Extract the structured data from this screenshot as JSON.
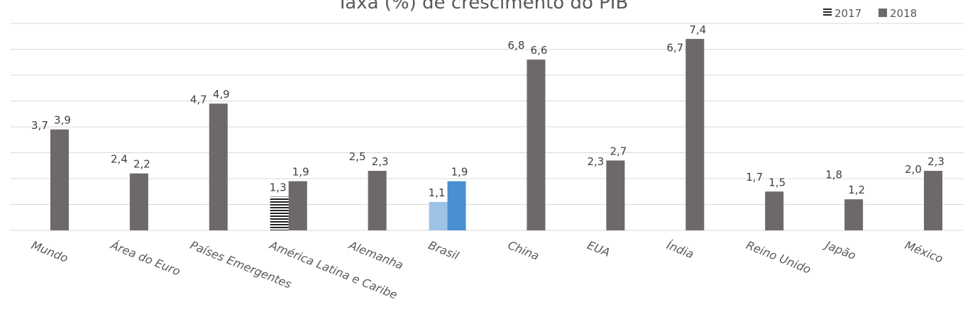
{
  "chart_data": {
    "type": "bar",
    "title": "Taxa (%) de crescimento do PIB",
    "categories": [
      "Mundo",
      "Área do Euro",
      "Países Emergentes",
      "América Latina e Caribe",
      "Alemanha",
      "Brasil",
      "China",
      "EUA",
      "Índia",
      "Reino Unido",
      "Japão",
      "México"
    ],
    "series": [
      {
        "name": "2017",
        "values": [
          3.7,
          2.4,
          4.7,
          1.3,
          2.5,
          1.1,
          6.8,
          2.3,
          6.7,
          1.7,
          1.8,
          2.0
        ]
      },
      {
        "name": "2018",
        "values": [
          3.9,
          2.2,
          4.9,
          1.9,
          2.3,
          1.9,
          6.6,
          2.7,
          7.4,
          1.5,
          1.2,
          2.3
        ]
      }
    ],
    "value_labels": {
      "2017": [
        "3,7",
        "2,4",
        "4,7",
        "1,3",
        "2,5",
        "1,1",
        "6,8",
        "2,3",
        "6,7",
        "1,7",
        "1,8",
        "2,0"
      ],
      "2018": [
        "3,9",
        "2,2",
        "4,9",
        "1,9",
        "2,3",
        "1,9",
        "6,6",
        "2,7",
        "7,4",
        "1,5",
        "1,2",
        "2,3"
      ]
    },
    "ylim": [
      0,
      8
    ],
    "grid": true,
    "legend": "top-right",
    "colors": {
      "bar_2018": "#6d6968",
      "brasil_2017": "#9dc3e6",
      "brasil_2018": "#4a8fcf",
      "america_latina_2017": "#222222",
      "grid": "#d9d9d9"
    }
  }
}
